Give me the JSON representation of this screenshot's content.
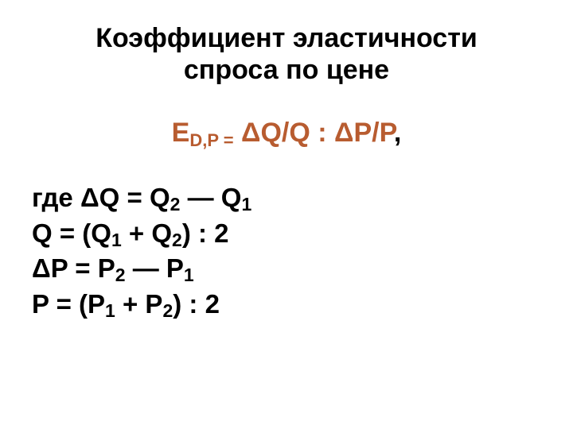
{
  "colors": {
    "accent": "#b85c30",
    "text": "#000000",
    "background": "#ffffff"
  },
  "typography": {
    "title_fontsize": 34,
    "formula_fontsize": 34,
    "defs_fontsize": 33,
    "subscript_fontsize": 22,
    "font_weight": 700,
    "font_family": "Arial"
  },
  "title": {
    "line1": "Коэффициент эластичности",
    "line2": "спроса по цене"
  },
  "main_formula": {
    "E": "Е",
    "sub": "D,P =",
    "body": " ΔQ/Q : ΔP/P",
    "trailing_comma": ","
  },
  "definitions": {
    "l1_pre": "где ΔQ = Q",
    "l1_s1": "2",
    "l1_mid": " — Q",
    "l1_s2": "1",
    "l2_pre": "Q = (Q",
    "l2_s1": "1",
    "l2_mid": " + Q",
    "l2_s2": "2",
    "l2_post": ") : 2",
    "l3_pre": "ΔP = P",
    "l3_s1": "2",
    "l3_mid": " — P",
    "l3_s2": "1",
    "l4_pre": "P = (P",
    "l4_s1": "1",
    "l4_mid": " + P",
    "l4_s2": "2",
    "l4_post": ") : 2"
  }
}
